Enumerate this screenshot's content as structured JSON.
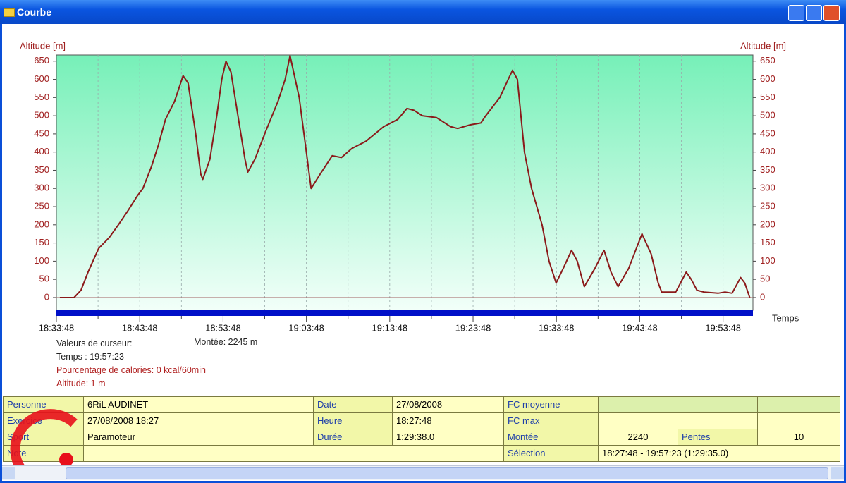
{
  "window": {
    "title": "Courbe"
  },
  "chart_data": {
    "type": "line",
    "y_label": "Altitude [m]",
    "x_label": "Temps",
    "color": "#8b1a1a",
    "x": [
      "18:34:13",
      "18:35:55",
      "18:36:45",
      "18:37:36",
      "18:38:52",
      "18:40:08",
      "18:41:14",
      "18:42:25",
      "18:43:31",
      "18:44:11",
      "18:45:12",
      "18:46:03",
      "18:46:53",
      "18:47:59",
      "18:49:00",
      "18:49:36",
      "18:50:31",
      "18:51:07",
      "18:51:22",
      "18:52:13",
      "18:53:03",
      "18:53:39",
      "18:54:09",
      "18:54:45",
      "18:55:35",
      "18:56:26",
      "18:56:46",
      "18:57:37",
      "18:58:58",
      "19:00:24",
      "19:01:15",
      "19:01:50",
      "19:02:56",
      "19:04:22",
      "19:05:28",
      "19:06:54",
      "19:08:00",
      "19:09:16",
      "19:10:58",
      "19:13:04",
      "19:14:46",
      "19:15:52",
      "19:16:42",
      "19:17:43",
      "19:19:24",
      "19:21:06",
      "19:21:57",
      "19:23:28",
      "19:24:44",
      "19:25:19",
      "19:27:01",
      "19:28:01",
      "19:28:32",
      "19:29:07",
      "19:29:58",
      "19:30:49",
      "19:32:05",
      "19:32:55",
      "19:33:46",
      "19:34:37",
      "19:35:37",
      "19:36:18",
      "19:37:09",
      "19:38:25",
      "19:39:31",
      "19:40:21",
      "19:41:12",
      "19:42:28",
      "19:44:04",
      "19:45:10",
      "19:46:01",
      "19:46:26",
      "19:48:07",
      "19:49:23",
      "19:49:59",
      "19:50:40",
      "19:51:30",
      "19:53:12",
      "19:54:02",
      "19:54:53",
      "19:55:54",
      "19:56:24",
      "19:57:00"
    ],
    "values": [
      0,
      0,
      20,
      70,
      135,
      165,
      200,
      240,
      280,
      300,
      360,
      420,
      490,
      540,
      610,
      590,
      450,
      340,
      325,
      380,
      500,
      600,
      650,
      620,
      500,
      380,
      345,
      380,
      460,
      540,
      600,
      665,
      550,
      300,
      340,
      390,
      385,
      410,
      430,
      470,
      490,
      520,
      515,
      500,
      495,
      470,
      465,
      475,
      480,
      500,
      550,
      600,
      625,
      600,
      400,
      300,
      200,
      100,
      40,
      80,
      130,
      100,
      30,
      80,
      130,
      70,
      30,
      80,
      175,
      120,
      40,
      15,
      15,
      70,
      50,
      20,
      15,
      12,
      15,
      12,
      55,
      40,
      0
    ],
    "xlim": [
      "18:33:48",
      "19:57:23"
    ],
    "xticks": [
      "18:33:48",
      "18:43:48",
      "18:53:48",
      "19:03:48",
      "19:13:48",
      "19:23:48",
      "19:33:48",
      "19:43:48",
      "19:53:48"
    ],
    "ylim": [
      -35,
      667
    ],
    "yticks": [
      0,
      50,
      100,
      150,
      200,
      250,
      300,
      350,
      400,
      450,
      500,
      550,
      600,
      650
    ],
    "grid": true
  },
  "cursor": {
    "heading": "Valeurs de curseur:",
    "climb": "Montée: 2245 m",
    "time": "Temps : 19:57:23",
    "calories": "Pourcentage de calories: 0 kcal/60min",
    "altitude": "Altitude: 1 m"
  },
  "table": [
    [
      "Personne",
      "6RiL AUDINET",
      "Date",
      "27/08/2008",
      "FC moyenne"
    ],
    [
      "Exercice",
      "27/08/2008 18:27",
      "Heure",
      "18:27:48",
      "FC max"
    ],
    [
      "Sport",
      "Paramoteur",
      "Durée",
      "1:29:38.0",
      "Montée",
      2240,
      "Pentes",
      10
    ],
    [
      "Note",
      "Sélection",
      "18:27:48 - 19:57:23 (1:29:35.0)"
    ]
  ]
}
